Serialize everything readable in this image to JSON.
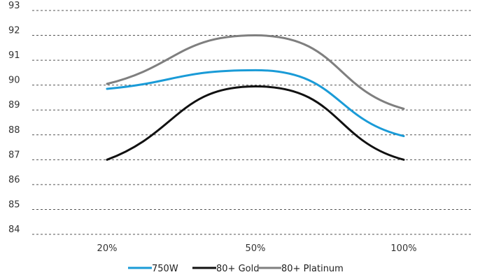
{
  "chart_data": {
    "type": "line",
    "categories": [
      "20%",
      "50%",
      "100%"
    ],
    "y_ticks": [
      "84",
      "85",
      "86",
      "87",
      "88",
      "89",
      "90",
      "91",
      "92",
      "93"
    ],
    "ylim": [
      84,
      93
    ],
    "grid": true,
    "legend_position": "bottom",
    "series": [
      {
        "name": "750W",
        "color": "#1a9bd7",
        "values": [
          89.85,
          90.6,
          87.95
        ]
      },
      {
        "name": "80+ Gold",
        "color": "#111111",
        "values": [
          87.0,
          89.95,
          87.0
        ]
      },
      {
        "name": "80+ Platinum",
        "color": "#7f7f7f",
        "values": [
          90.05,
          92.0,
          89.05
        ]
      }
    ]
  }
}
